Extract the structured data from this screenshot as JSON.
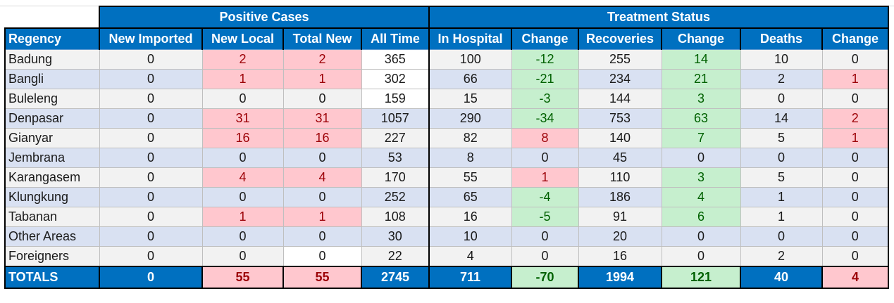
{
  "groups": {
    "positive": "Positive Cases",
    "treatment": "Treatment Status"
  },
  "headers": {
    "regency": "Regency",
    "new_imported": "New Imported",
    "new_local": "New Local",
    "total_new": "Total New",
    "all_time": "All Time",
    "in_hospital": "In Hospital",
    "change_hospital": "Change",
    "recoveries": "Recoveries",
    "change_recoveries": "Change",
    "deaths": "Deaths",
    "change_deaths": "Change"
  },
  "rows": [
    {
      "regency": "Badung",
      "new_imported": "0",
      "new_local": "2",
      "total_new": "2",
      "all_time": "365",
      "in_hospital": "100",
      "change_hospital": "-12",
      "recoveries": "255",
      "change_recoveries": "14",
      "deaths": "10",
      "change_deaths": "0"
    },
    {
      "regency": "Bangli",
      "new_imported": "0",
      "new_local": "1",
      "total_new": "1",
      "all_time": "302",
      "in_hospital": "66",
      "change_hospital": "-21",
      "recoveries": "234",
      "change_recoveries": "21",
      "deaths": "2",
      "change_deaths": "1"
    },
    {
      "regency": "Buleleng",
      "new_imported": "0",
      "new_local": "0",
      "total_new": "0",
      "all_time": "159",
      "in_hospital": "15",
      "change_hospital": "-3",
      "recoveries": "144",
      "change_recoveries": "3",
      "deaths": "0",
      "change_deaths": "0"
    },
    {
      "regency": "Denpasar",
      "new_imported": "0",
      "new_local": "31",
      "total_new": "31",
      "all_time": "1057",
      "in_hospital": "290",
      "change_hospital": "-34",
      "recoveries": "753",
      "change_recoveries": "63",
      "deaths": "14",
      "change_deaths": "2"
    },
    {
      "regency": "Gianyar",
      "new_imported": "0",
      "new_local": "16",
      "total_new": "16",
      "all_time": "227",
      "in_hospital": "82",
      "change_hospital": "8",
      "recoveries": "140",
      "change_recoveries": "7",
      "deaths": "5",
      "change_deaths": "1"
    },
    {
      "regency": "Jembrana",
      "new_imported": "0",
      "new_local": "0",
      "total_new": "0",
      "all_time": "53",
      "in_hospital": "8",
      "change_hospital": "0",
      "recoveries": "45",
      "change_recoveries": "0",
      "deaths": "0",
      "change_deaths": "0"
    },
    {
      "regency": "Karangasem",
      "new_imported": "0",
      "new_local": "4",
      "total_new": "4",
      "all_time": "170",
      "in_hospital": "55",
      "change_hospital": "1",
      "recoveries": "110",
      "change_recoveries": "3",
      "deaths": "5",
      "change_deaths": "0"
    },
    {
      "regency": "Klungkung",
      "new_imported": "0",
      "new_local": "0",
      "total_new": "0",
      "all_time": "252",
      "in_hospital": "65",
      "change_hospital": "-4",
      "recoveries": "186",
      "change_recoveries": "4",
      "deaths": "1",
      "change_deaths": "0"
    },
    {
      "regency": "Tabanan",
      "new_imported": "0",
      "new_local": "1",
      "total_new": "1",
      "all_time": "108",
      "in_hospital": "16",
      "change_hospital": "-5",
      "recoveries": "91",
      "change_recoveries": "6",
      "deaths": "1",
      "change_deaths": "0"
    },
    {
      "regency": "Other Areas",
      "new_imported": "0",
      "new_local": "0",
      "total_new": "0",
      "all_time": "30",
      "in_hospital": "10",
      "change_hospital": "0",
      "recoveries": "20",
      "change_recoveries": "0",
      "deaths": "0",
      "change_deaths": "0"
    },
    {
      "regency": "Foreigners",
      "new_imported": "0",
      "new_local": "0",
      "total_new": "0",
      "all_time": "22",
      "in_hospital": "4",
      "change_hospital": "0",
      "recoveries": "16",
      "change_recoveries": "0",
      "deaths": "2",
      "change_deaths": "0"
    }
  ],
  "totals": {
    "regency": "TOTALS",
    "new_imported": "0",
    "new_local": "55",
    "total_new": "55",
    "all_time": "2745",
    "in_hospital": "711",
    "change_hospital": "-70",
    "recoveries": "1994",
    "change_recoveries": "121",
    "deaths": "40",
    "change_deaths": "4"
  },
  "colors": {
    "header_blue": "#0070c0",
    "positive_fill": "#ffc7ce",
    "positive_text": "#9c0006",
    "negative_fill": "#c6efce",
    "negative_text": "#006100",
    "band_gray": "#f2f2f2",
    "band_blue": "#d9e1f2"
  }
}
